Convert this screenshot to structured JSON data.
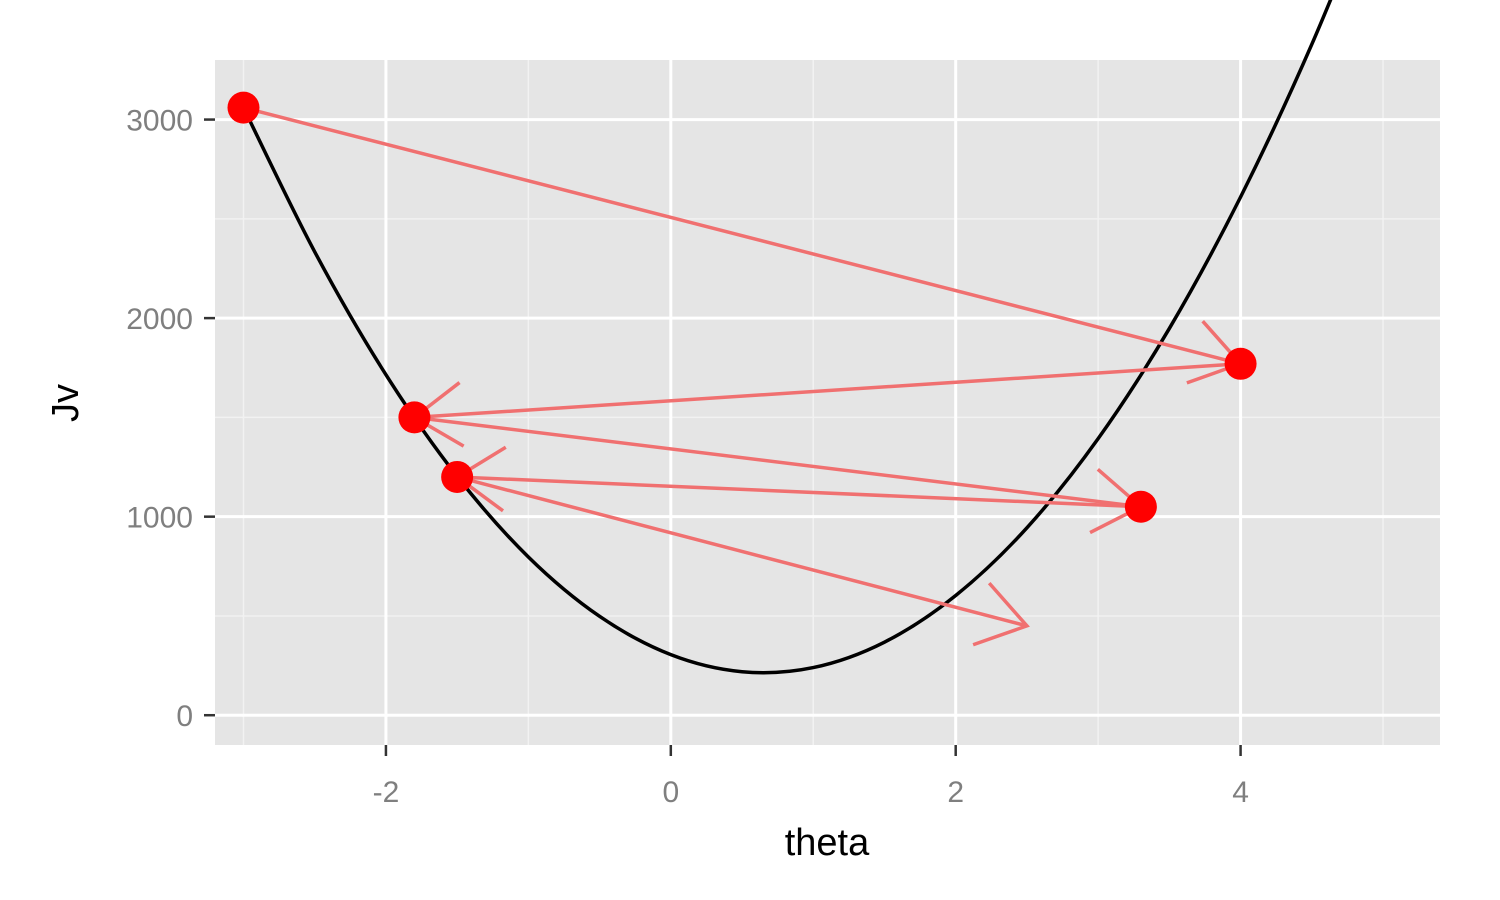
{
  "chart_data": {
    "type": "line",
    "title": "",
    "xlabel": "theta",
    "ylabel": "Jv",
    "xlim": [
      -3.2,
      5.4
    ],
    "ylim": [
      -150,
      3300
    ],
    "xticks": [
      -2,
      0,
      2,
      4
    ],
    "xtick_labels": [
      "-2",
      "0",
      "2",
      "4"
    ],
    "yticks": [
      0,
      1000,
      2000,
      3000
    ],
    "ytick_labels": [
      "0",
      "1000",
      "2000",
      "3000"
    ],
    "grid": true,
    "legend": "none",
    "series": [
      {
        "type": "line",
        "x": [
          -3,
          -2.5,
          -2,
          -1.5,
          -1,
          -0.5,
          0,
          0.5,
          1,
          1.5,
          2,
          2.5,
          3,
          3.5,
          4,
          4.5,
          5
        ],
        "y": [
          3060,
          2334,
          1715,
          1203,
          797,
          498,
          305,
          219,
          240,
          368,
          603,
          944,
          1393,
          1948,
          2610,
          3379,
          4255
        ]
      },
      {
        "type": "points",
        "x": [
          -3,
          4,
          -1.8,
          3.3,
          -1.5
        ],
        "y": [
          3060,
          1770,
          1500,
          1050,
          1200
        ]
      }
    ],
    "arrows": [
      {
        "from": [
          -3,
          3060
        ],
        "to": [
          4,
          1770
        ]
      },
      {
        "from": [
          4,
          1770
        ],
        "to": [
          -1.8,
          1500
        ]
      },
      {
        "from": [
          -1.8,
          1500
        ],
        "to": [
          3.3,
          1050
        ]
      },
      {
        "from": [
          3.3,
          1050
        ],
        "to": [
          -1.5,
          1200
        ]
      },
      {
        "from": [
          -1.5,
          1200
        ],
        "to": [
          2.5,
          450
        ]
      }
    ],
    "colors": {
      "panel": "#e5e5e5",
      "grid_major": "#ffffff",
      "grid_minor": "#f2f2f2",
      "curve": "#000000",
      "points": "#ff0000",
      "arrows": "#f07070",
      "tick_text": "#7f7f7f"
    }
  }
}
